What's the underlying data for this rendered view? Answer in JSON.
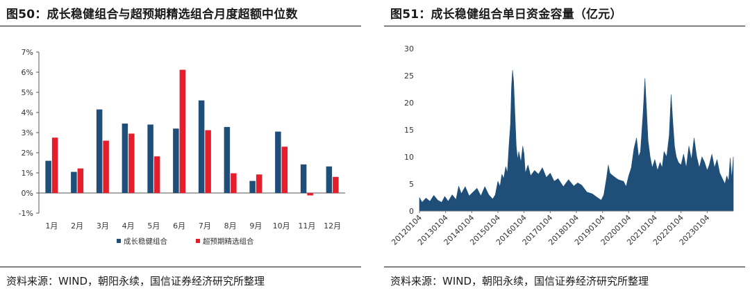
{
  "left": {
    "title": "图50：成长稳健组合与超预期精选组合月度超额中位数",
    "source": "资料来源：WIND，朝阳永续，国信证券经济研究所整理"
  },
  "right": {
    "title": "图51：成长稳健组合单日资金容量（亿元）",
    "source": "资料来源：WIND，朝阳永续，国信证券经济研究所整理"
  },
  "chart_data": [
    {
      "type": "bar",
      "title": "成长稳健组合与超预期精选组合月度超额中位数",
      "categories": [
        "1月",
        "2月",
        "3月",
        "4月",
        "5月",
        "6月",
        "7月",
        "8月",
        "9月",
        "10月",
        "11月",
        "12月"
      ],
      "series": [
        {
          "name": "成长稳健组合",
          "color": "#1f4e79",
          "values": [
            1.6,
            1.05,
            4.15,
            3.45,
            3.4,
            3.2,
            4.6,
            3.28,
            0.6,
            3.05,
            1.42,
            1.32
          ]
        },
        {
          "name": "超预期精选组合",
          "color": "#e41e2b",
          "values": [
            2.75,
            1.22,
            2.6,
            2.95,
            1.82,
            6.12,
            3.12,
            0.98,
            0.92,
            2.3,
            -0.12,
            0.8
          ]
        }
      ],
      "ylim": [
        -1,
        7
      ],
      "yticks": [
        -1,
        0,
        1,
        2,
        3,
        4,
        5,
        6,
        7
      ],
      "ytick_labels": [
        "-1%",
        "0%",
        "1%",
        "2%",
        "3%",
        "4%",
        "5%",
        "6%",
        "7%"
      ],
      "legend": "bottom-center",
      "xlabel": "",
      "ylabel": ""
    },
    {
      "type": "area",
      "title": "成长稳健组合单日资金容量（亿元）",
      "color": "#1f4e79",
      "x": [
        "20120104",
        "20130104",
        "20140104",
        "20150104",
        "20160104",
        "20170104",
        "20180104",
        "20190104",
        "20200104",
        "20210104",
        "20220104",
        "20230104"
      ],
      "x_range": [
        2012.0,
        2024.0
      ],
      "ylim": [
        0,
        30
      ],
      "yticks": [
        0,
        5,
        10,
        15,
        20,
        25,
        30
      ],
      "points": [
        [
          2012.0,
          2.5
        ],
        [
          2012.1,
          1.6
        ],
        [
          2012.25,
          2.4
        ],
        [
          2012.4,
          1.8
        ],
        [
          2012.55,
          2.9
        ],
        [
          2012.7,
          2.0
        ],
        [
          2012.85,
          1.6
        ],
        [
          2012.97,
          2.7
        ],
        [
          2013.1,
          1.8
        ],
        [
          2013.25,
          3.0
        ],
        [
          2013.4,
          2.1
        ],
        [
          2013.5,
          4.6
        ],
        [
          2013.6,
          3.2
        ],
        [
          2013.75,
          4.5
        ],
        [
          2013.9,
          2.8
        ],
        [
          2014.05,
          3.5
        ],
        [
          2014.2,
          4.2
        ],
        [
          2014.35,
          2.8
        ],
        [
          2014.5,
          4.5
        ],
        [
          2014.65,
          3.0
        ],
        [
          2014.8,
          2.2
        ],
        [
          2014.9,
          3.0
        ],
        [
          2015.0,
          5.5
        ],
        [
          2015.08,
          4.5
        ],
        [
          2015.15,
          6.8
        ],
        [
          2015.22,
          6.0
        ],
        [
          2015.3,
          8.2
        ],
        [
          2015.36,
          7.0
        ],
        [
          2015.42,
          11.8
        ],
        [
          2015.48,
          16.0
        ],
        [
          2015.52,
          23.0
        ],
        [
          2015.56,
          26.0
        ],
        [
          2015.6,
          24.0
        ],
        [
          2015.65,
          18.0
        ],
        [
          2015.7,
          12.0
        ],
        [
          2015.75,
          9.5
        ],
        [
          2015.8,
          11.0
        ],
        [
          2015.88,
          9.0
        ],
        [
          2015.95,
          12.0
        ],
        [
          2016.0,
          10.5
        ],
        [
          2016.05,
          7.0
        ],
        [
          2016.15,
          8.5
        ],
        [
          2016.25,
          6.5
        ],
        [
          2016.4,
          7.5
        ],
        [
          2016.55,
          6.8
        ],
        [
          2016.7,
          8.0
        ],
        [
          2016.85,
          6.2
        ],
        [
          2017.0,
          7.0
        ],
        [
          2017.15,
          5.5
        ],
        [
          2017.3,
          6.0
        ],
        [
          2017.5,
          4.5
        ],
        [
          2017.7,
          5.8
        ],
        [
          2017.9,
          4.6
        ],
        [
          2018.05,
          5.2
        ],
        [
          2018.2,
          4.8
        ],
        [
          2018.4,
          3.5
        ],
        [
          2018.6,
          3.2
        ],
        [
          2018.8,
          2.5
        ],
        [
          2018.95,
          2.0
        ],
        [
          2019.05,
          3.0
        ],
        [
          2019.15,
          6.0
        ],
        [
          2019.22,
          8.5
        ],
        [
          2019.28,
          7.0
        ],
        [
          2019.4,
          6.5
        ],
        [
          2019.6,
          5.8
        ],
        [
          2019.8,
          5.5
        ],
        [
          2019.9,
          4.5
        ],
        [
          2020.0,
          6.5
        ],
        [
          2020.1,
          8.0
        ],
        [
          2020.2,
          11.5
        ],
        [
          2020.3,
          13.5
        ],
        [
          2020.38,
          10.0
        ],
        [
          2020.45,
          11.0
        ],
        [
          2020.55,
          18.0
        ],
        [
          2020.62,
          24.5
        ],
        [
          2020.68,
          19.0
        ],
        [
          2020.74,
          13.0
        ],
        [
          2020.82,
          10.0
        ],
        [
          2020.9,
          8.0
        ],
        [
          2021.0,
          9.5
        ],
        [
          2021.1,
          7.5
        ],
        [
          2021.2,
          9.0
        ],
        [
          2021.28,
          8.0
        ],
        [
          2021.35,
          11.0
        ],
        [
          2021.45,
          10.0
        ],
        [
          2021.55,
          14.0
        ],
        [
          2021.62,
          21.5
        ],
        [
          2021.68,
          17.0
        ],
        [
          2021.75,
          12.0
        ],
        [
          2021.82,
          10.0
        ],
        [
          2021.9,
          9.0
        ],
        [
          2022.0,
          8.5
        ],
        [
          2022.1,
          10.5
        ],
        [
          2022.2,
          8.0
        ],
        [
          2022.3,
          12.0
        ],
        [
          2022.4,
          9.5
        ],
        [
          2022.5,
          13.5
        ],
        [
          2022.6,
          10.0
        ],
        [
          2022.7,
          8.0
        ],
        [
          2022.8,
          10.0
        ],
        [
          2022.9,
          9.0
        ],
        [
          2023.0,
          7.5
        ],
        [
          2023.08,
          8.5
        ],
        [
          2023.18,
          10.5
        ],
        [
          2023.28,
          8.0
        ],
        [
          2023.38,
          9.5
        ],
        [
          2023.48,
          7.0
        ],
        [
          2023.58,
          6.0
        ],
        [
          2023.68,
          5.0
        ],
        [
          2023.75,
          6.5
        ],
        [
          2023.82,
          5.5
        ],
        [
          2023.88,
          9.8
        ],
        [
          2023.94,
          6.0
        ],
        [
          2024.0,
          10.0
        ]
      ],
      "xlabel": "",
      "ylabel": ""
    }
  ]
}
